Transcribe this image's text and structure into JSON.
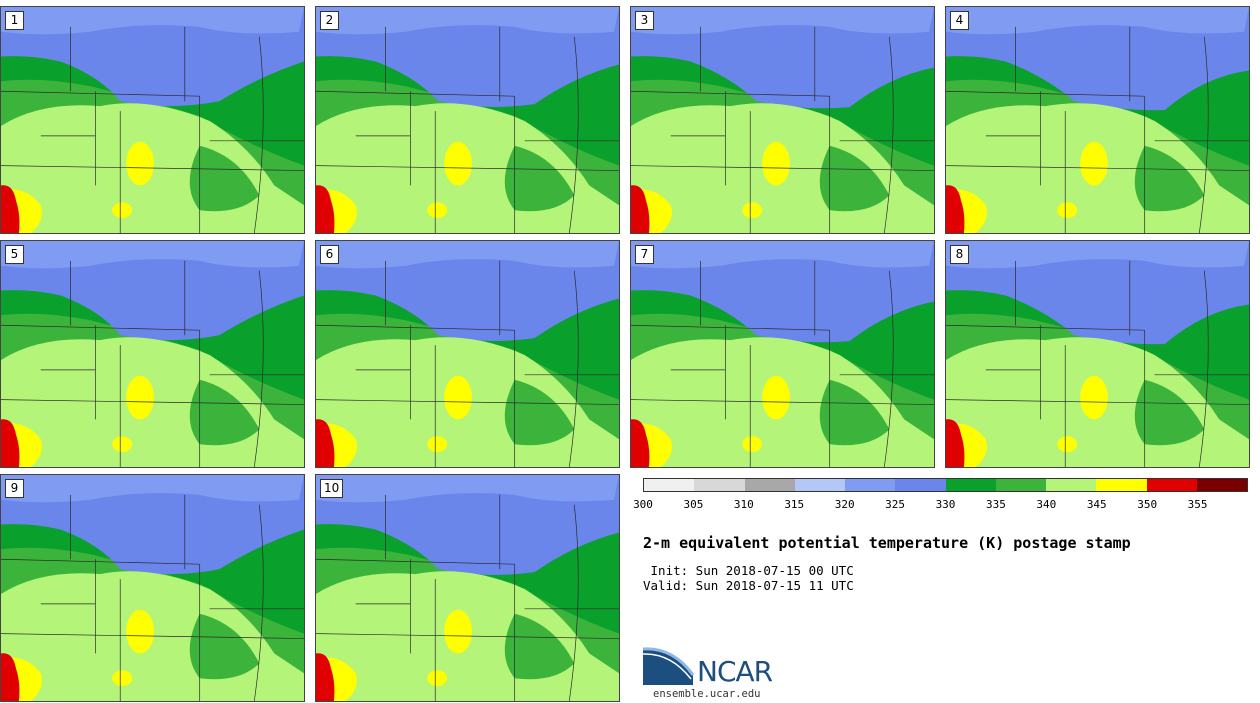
{
  "panels": [
    {
      "label": "1"
    },
    {
      "label": "2"
    },
    {
      "label": "3"
    },
    {
      "label": "4"
    },
    {
      "label": "5"
    },
    {
      "label": "6"
    },
    {
      "label": "7"
    },
    {
      "label": "8"
    },
    {
      "label": "9"
    },
    {
      "label": "10"
    }
  ],
  "colorbar": {
    "colors": [
      "#f0f0f0",
      "#d8d8d8",
      "#a8a8a8",
      "#b4c8f8",
      "#7f9cf2",
      "#6a86ea",
      "#0aa02c",
      "#3cb43c",
      "#b4f478",
      "#ffff00",
      "#e00000",
      "#7a0000"
    ],
    "ticks": [
      "300",
      "305",
      "310",
      "315",
      "320",
      "325",
      "330",
      "335",
      "340",
      "345",
      "350",
      "355"
    ]
  },
  "title": "2-m equivalent potential temperature (K) postage stamp",
  "init": " Init: Sun 2018-07-15 00 UTC",
  "valid": "Valid: Sun 2018-07-15 11 UTC",
  "logo": {
    "text": "NCAR",
    "site": "ensemble.ucar.edu"
  }
}
